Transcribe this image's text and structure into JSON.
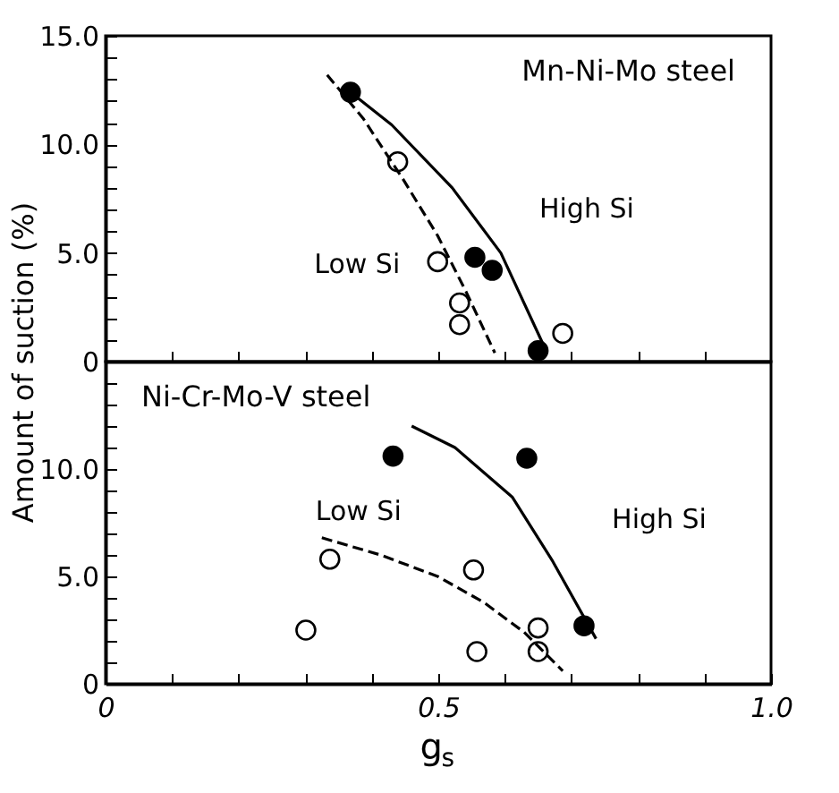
{
  "chart_data": [
    {
      "type": "scatter",
      "title": "Mn-Ni-Mo steel",
      "ylabel": "Amount of suction (%)",
      "xlim": [
        0,
        1
      ],
      "ylim": [
        0,
        15
      ],
      "xticks": [
        {
          "value": 0.1,
          "label": null
        },
        {
          "value": 0.2,
          "label": null
        },
        {
          "value": 0.3,
          "label": null
        },
        {
          "value": 0.4,
          "label": null
        },
        {
          "value": 0.5,
          "label": null
        },
        {
          "value": 0.6,
          "label": null
        },
        {
          "value": 0.7,
          "label": null
        },
        {
          "value": 0.8,
          "label": null
        },
        {
          "value": 0.9,
          "label": null
        }
      ],
      "yticks": [
        0,
        {
          "value": 1,
          "label": null
        },
        {
          "value": 2,
          "label": null
        },
        {
          "value": 3,
          "label": null
        },
        {
          "value": 4,
          "label": null
        },
        {
          "value": 5,
          "label": "5.0"
        },
        {
          "value": 6,
          "label": null
        },
        {
          "value": 7,
          "label": null
        },
        {
          "value": 8,
          "label": null
        },
        {
          "value": 9,
          "label": null
        },
        {
          "value": 10,
          "label": "10.0"
        },
        {
          "value": 11,
          "label": null
        },
        {
          "value": 12,
          "label": null
        },
        {
          "value": 13,
          "label": null
        },
        {
          "value": 14,
          "label": null
        },
        {
          "value": 15,
          "label": "15.0"
        }
      ],
      "tick_labels": "y",
      "grid": false,
      "series": [
        {
          "marker": "circle",
          "color": "#000000",
          "x": [
            0.368,
            0.555,
            0.581,
            0.65
          ],
          "values": [
            12.4,
            4.8,
            4.2,
            0.5
          ]
        },
        {
          "marker": "circle",
          "color": "#ffffff",
          "x": [
            0.439,
            0.499,
            0.532,
            0.532,
            0.687
          ],
          "values": [
            9.2,
            4.6,
            2.7,
            1.7,
            1.3
          ]
        },
        {
          "type": "line",
          "marker": "none",
          "line_style": "solid",
          "color": "#000000",
          "x": [
            0.368,
            0.43,
            0.521,
            0.594,
            0.659
          ],
          "values": [
            12.4,
            10.9,
            8.0,
            5.0,
            0.7
          ]
        },
        {
          "type": "line",
          "marker": "none",
          "line_style": "dashed",
          "color": "#000000",
          "x": [
            0.333,
            0.387,
            0.447,
            0.499,
            0.542,
            0.585
          ],
          "values": [
            13.2,
            11.2,
            8.4,
            5.8,
            3.2,
            0.4
          ]
        }
      ],
      "annotations": [
        "High Si",
        "Low Si"
      ]
    },
    {
      "type": "scatter",
      "title": "Ni-Cr-Mo-V steel",
      "xlabel": "g$_{s}$",
      "xlim": [
        0,
        1
      ],
      "ylim": [
        0,
        15
      ],
      "xticks": [
        0,
        {
          "value": 0.1,
          "label": null
        },
        {
          "value": 0.2,
          "label": null
        },
        {
          "value": 0.3,
          "label": null
        },
        {
          "value": 0.4,
          "label": null
        },
        0.5,
        {
          "value": 0.6,
          "label": null
        },
        {
          "value": 0.7,
          "label": null
        },
        {
          "value": 0.8,
          "label": null
        },
        {
          "value": 0.9,
          "label": null
        },
        {
          "value": 1,
          "label": "1.0"
        }
      ],
      "yticks": [
        0,
        {
          "value": 1,
          "label": null
        },
        {
          "value": 2,
          "label": null
        },
        {
          "value": 3,
          "label": null
        },
        {
          "value": 4,
          "label": null
        },
        {
          "value": 5,
          "label": "5.0"
        },
        {
          "value": 6,
          "label": null
        },
        {
          "value": 7,
          "label": null
        },
        {
          "value": 8,
          "label": null
        },
        {
          "value": 9,
          "label": null
        },
        {
          "value": 10,
          "label": "10.0"
        },
        {
          "value": 11,
          "label": null
        },
        {
          "value": 12,
          "label": null
        },
        {
          "value": 13,
          "label": null
        },
        {
          "value": 14,
          "label": null
        }
      ],
      "grid": false,
      "series": [
        {
          "marker": "circle",
          "color": "#000000",
          "x": [
            0.432,
            0.633,
            0.719
          ],
          "values": [
            10.6,
            10.5,
            2.7
          ]
        },
        {
          "marker": "circle",
          "color": "#ffffff",
          "x": [
            0.301,
            0.337,
            0.553,
            0.558,
            0.65,
            0.65
          ],
          "values": [
            2.5,
            5.8,
            5.3,
            1.5,
            2.6,
            1.5
          ]
        },
        {
          "type": "line",
          "marker": "none",
          "line_style": "solid",
          "color": "#000000",
          "x": [
            0.46,
            0.525,
            0.611,
            0.672,
            0.737
          ],
          "values": [
            12.0,
            11.0,
            8.7,
            5.7,
            2.1
          ]
        },
        {
          "type": "line",
          "marker": "none",
          "line_style": "dashed",
          "color": "#000000",
          "x": [
            0.325,
            0.413,
            0.499,
            0.568,
            0.629,
            0.687
          ],
          "values": [
            6.8,
            6.0,
            5.0,
            3.8,
            2.4,
            0.6
          ]
        }
      ],
      "annotations": [
        "High Si",
        "Low Si"
      ]
    }
  ]
}
